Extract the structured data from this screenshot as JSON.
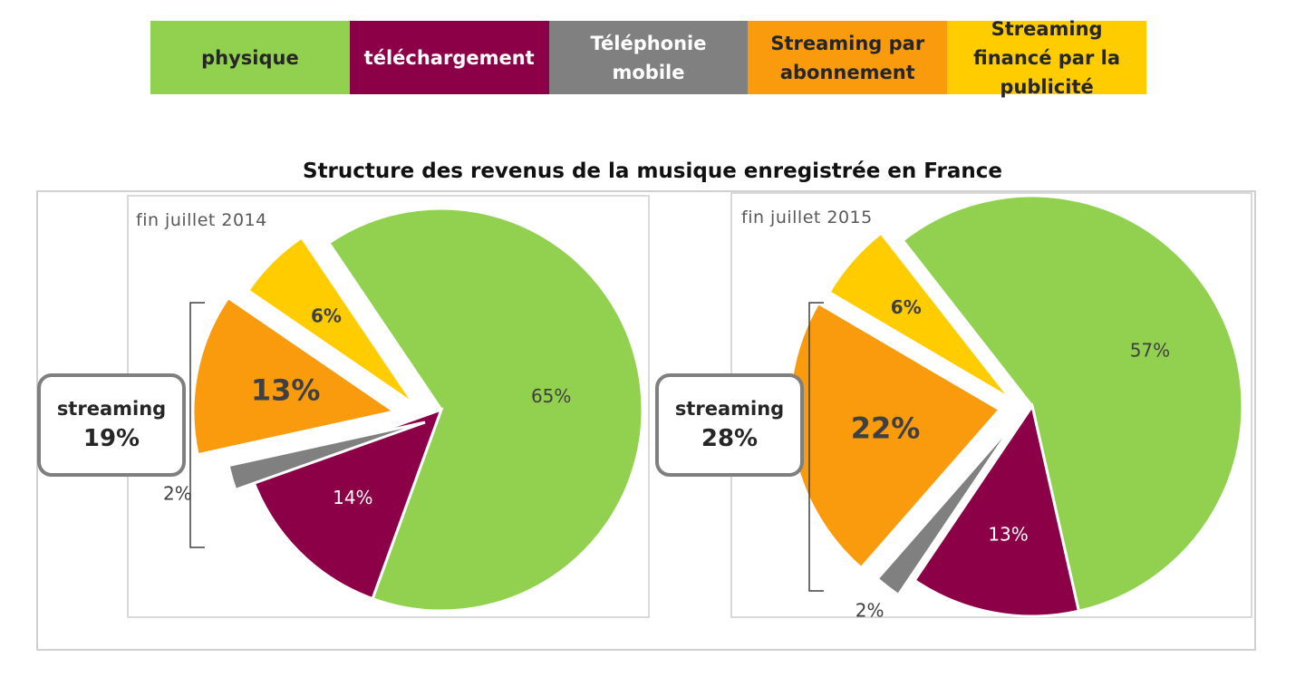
{
  "legend": [
    {
      "label": "physique",
      "color": "#92d050",
      "text_color": "#262626"
    },
    {
      "label": "téléchargement",
      "color": "#8b0046",
      "text_color": "#ffffff"
    },
    {
      "label": "Téléphonie mobile",
      "color": "#808080",
      "text_color": "#ffffff"
    },
    {
      "label": "Streaming par abonnement",
      "color": "#f99b0c",
      "text_color": "#262626"
    },
    {
      "label": "Streaming financé par la publicité",
      "color": "#ffcc00",
      "text_color": "#262626"
    }
  ],
  "title": "Structure des revenus de la musique enregistrée en France",
  "chart_data": [
    {
      "type": "pie",
      "label": "fin juillet 2014",
      "categories": [
        "physique",
        "téléchargement",
        "Téléphonie mobile",
        "Streaming par abonnement",
        "Streaming financé par la publicité"
      ],
      "values": [
        65,
        14,
        2,
        13,
        6
      ],
      "data_labels": [
        "65%",
        "14%",
        "2%",
        "13%",
        "6%"
      ],
      "exploded": [
        "Streaming par abonnement",
        "Streaming financé par la publicité",
        "Téléphonie mobile"
      ],
      "streaming_total": {
        "label": "streaming",
        "value": "19%"
      }
    },
    {
      "type": "pie",
      "label": "fin juillet 2015",
      "categories": [
        "physique",
        "téléchargement",
        "Téléphonie mobile",
        "Streaming par abonnement",
        "Streaming financé par la publicité"
      ],
      "values": [
        57,
        13,
        2,
        22,
        6
      ],
      "data_labels": [
        "57%",
        "13%",
        "2%",
        "22%",
        "6%"
      ],
      "exploded": [
        "Streaming par abonnement",
        "Streaming financé par la publicité",
        "Téléphonie mobile"
      ],
      "streaming_total": {
        "label": "streaming",
        "value": "28%"
      }
    }
  ]
}
